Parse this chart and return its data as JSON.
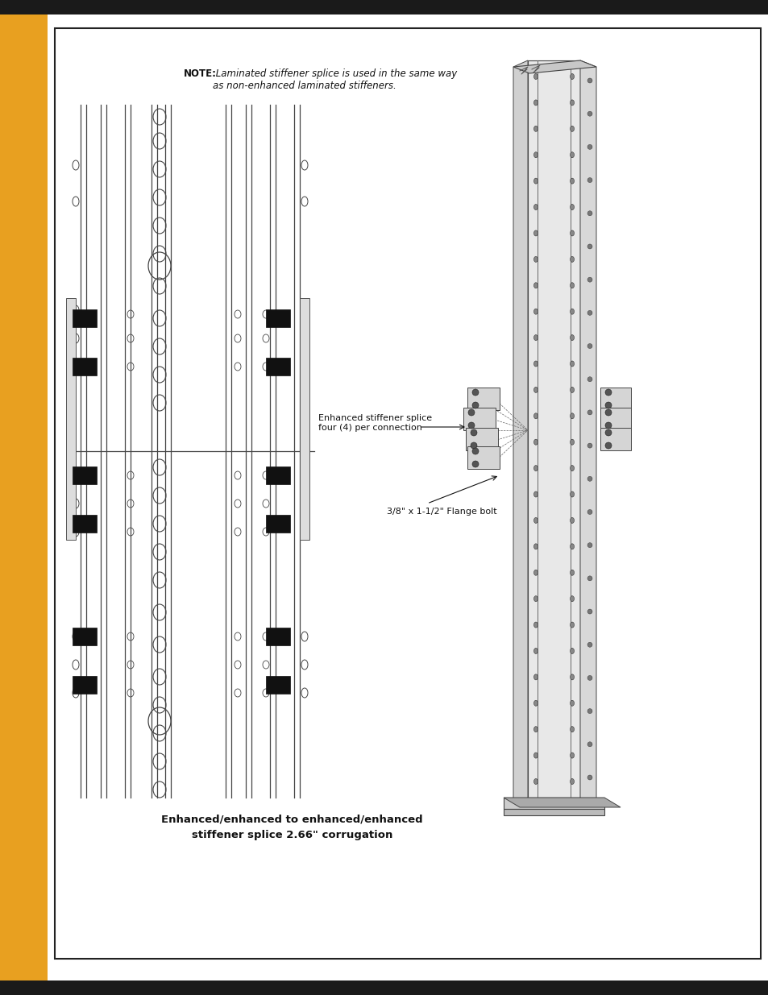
{
  "page_bg": "#ffffff",
  "sidebar_color": "#E8A020",
  "top_bar_color": "#1a1a1a",
  "bottom_bar_color": "#1a1a1a",
  "note_bold": "NOTE:",
  "note_italic": " Laminated stiffener splice is used in the same way\nas non-enhanced laminated stiffeners.",
  "label1": "Enhanced stiffener splice\nfour (4) per connection",
  "label2": "3/8\" x 1-1/2\" Flange bolt",
  "caption_line1": "Enhanced/enhanced to enhanced/enhanced",
  "caption_line2": "stiffener splice 2.66\" corrugation",
  "line_color": "#444444",
  "circle_color": "#444444",
  "black": "#111111",
  "gray_light": "#e0e0e0",
  "gray_mid": "#cccccc",
  "gray_dark": "#aaaaaa"
}
